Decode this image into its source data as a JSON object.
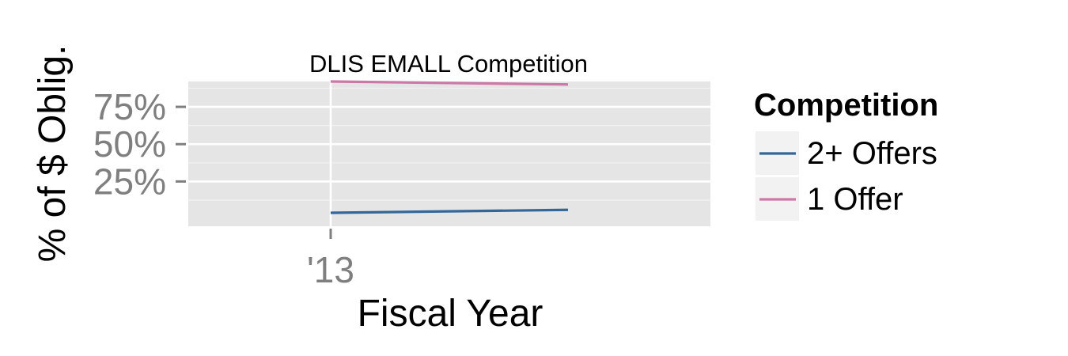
{
  "chart_data": {
    "type": "line",
    "title": "DLIS EMALL Competition",
    "xlabel": "Fiscal Year",
    "ylabel": "% of $ Oblig.",
    "x": [
      2013,
      2014
    ],
    "x_ticks": [
      {
        "value": 2013,
        "label": "'13"
      }
    ],
    "xlim": [
      2012.4,
      2014.6
    ],
    "y_ticks": [
      {
        "value": 0.25,
        "label": "25%"
      },
      {
        "value": 0.5,
        "label": "50%"
      },
      {
        "value": 0.75,
        "label": "75%"
      }
    ],
    "ylim": [
      -0.05,
      0.92
    ],
    "grid": true,
    "legend_title": "Competition",
    "legend_position": "right",
    "series": [
      {
        "name": "2+ Offers",
        "color": "#336699",
        "values": [
          0.04,
          0.06
        ]
      },
      {
        "name": "1 Offer",
        "color": "#CC79A7",
        "values": [
          0.92,
          0.9
        ]
      }
    ]
  }
}
